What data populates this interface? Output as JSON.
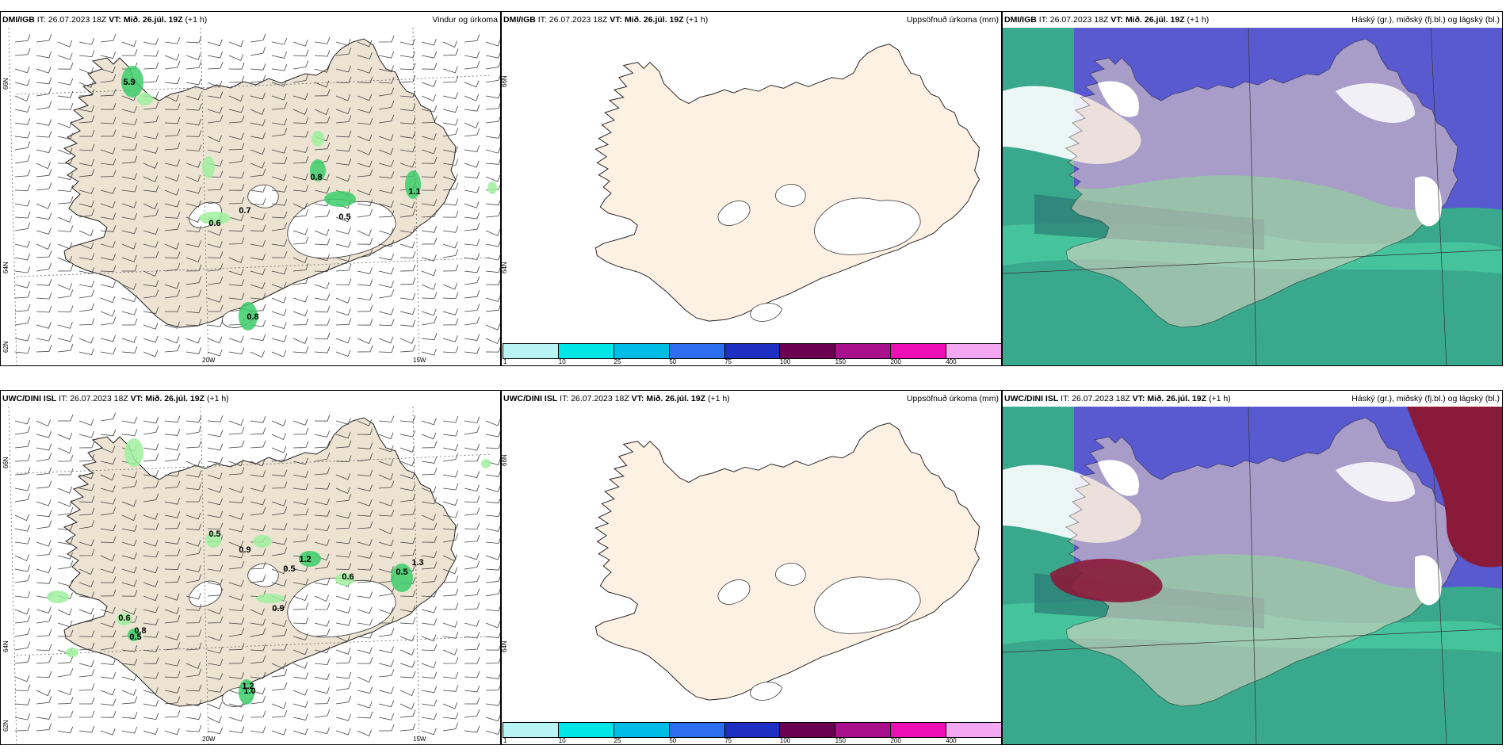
{
  "rows": [
    {
      "model": "DMI/IGB",
      "it_label": "IT:",
      "it_value": "26.07.2023 18Z",
      "vt_label": "VT:",
      "vt_value": "Mið. 26.júl. 19Z",
      "lead": "(+1 h)",
      "wind_title": "Vindur og úrkoma",
      "precip_title": "Uppsöfnuð úrkoma (mm)",
      "cloud_title": "Háský (gr.), miðský (fj.bl.) og lágský (bl.)",
      "values": [
        "5.9",
        "0.8",
        "0.7",
        "0.6",
        "0.5",
        "1.1",
        "0.8"
      ]
    },
    {
      "model": "UWC/DINI ISL",
      "it_label": "IT:",
      "it_value": "26.07.2023 18Z",
      "vt_label": "VT:",
      "vt_value": "Mið. 26.júl. 19Z",
      "lead": "(+1 h)",
      "wind_title": "",
      "precip_title": "Uppsöfnuð úrkoma (mm)",
      "cloud_title": "Háský (gr.), miðský (fj.bl.) og lágský (bl.)",
      "values": [
        "0.5",
        "0.9",
        "1.2",
        "0.5",
        "0.6",
        "0.5",
        "1.3",
        "0.9",
        "0.6",
        "0.8",
        "0.5",
        "1.2",
        "1.0"
      ]
    }
  ],
  "axes": {
    "lon_labels": [
      "20W",
      "15W"
    ],
    "lat_labels": [
      "66N",
      "64N",
      "62N"
    ]
  },
  "colorbar": {
    "labels": [
      "1",
      "10",
      "25",
      "50",
      "75",
      "100",
      "150",
      "200",
      "400"
    ],
    "colors": [
      "#b8f4f4",
      "#00e5e5",
      "#00bde8",
      "#2d6ef0",
      "#1e2fc2",
      "#6b0050",
      "#a8108c",
      "#ee10b4",
      "#f4a8f4"
    ]
  },
  "colors": {
    "land": "#ede3d3",
    "ice": "#ffffff",
    "precip_light": "#9ff09f",
    "precip_mid": "#3ccc6a",
    "cloud_high": "#5a5ad0",
    "cloud_mid": "#3aa88c",
    "cloud_low": "#e8d4c4",
    "cloud_red": "#8a1a3a"
  }
}
